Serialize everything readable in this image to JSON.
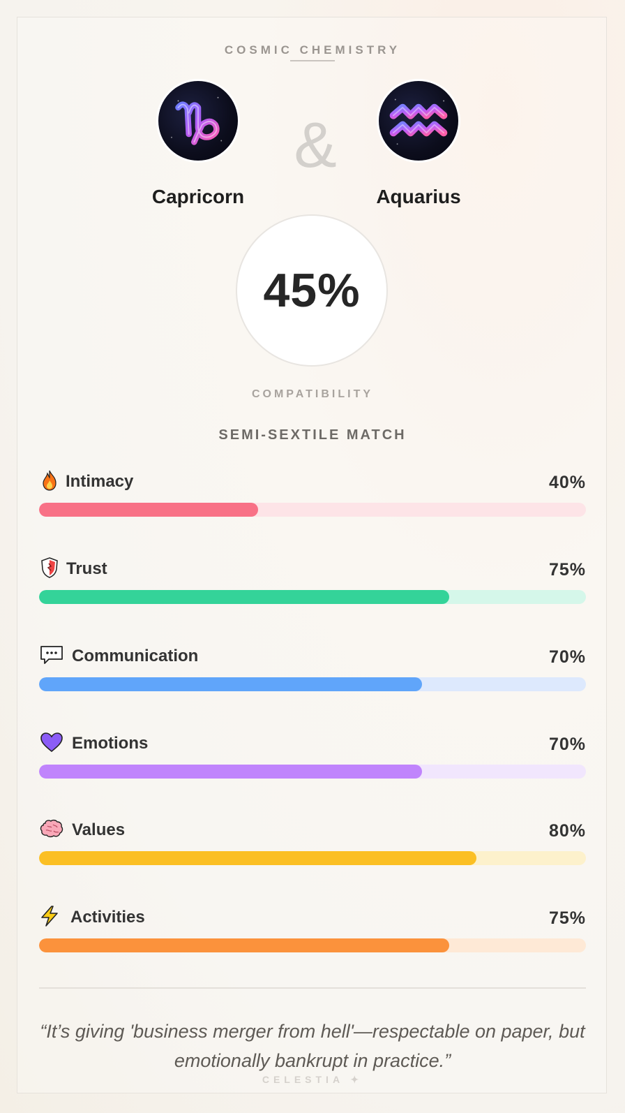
{
  "header": {
    "title": "COSMIC CHEMISTRY"
  },
  "signs": [
    {
      "name": "Capricorn",
      "glyph": "♑",
      "icon": "capricorn-icon"
    },
    {
      "name": "Aquarius",
      "glyph": "♒",
      "icon": "aquarius-icon"
    }
  ],
  "ampersand": "&",
  "score": {
    "value": "45%",
    "label": "COMPATIBILITY"
  },
  "match_type": "SEMI-SEXTILE MATCH",
  "metrics": [
    {
      "label": "Intimacy",
      "value": "40%",
      "percent": 40,
      "icon": "fire-icon",
      "color": "#f87186",
      "track": "#fde4e7"
    },
    {
      "label": "Trust",
      "value": "75%",
      "percent": 75,
      "icon": "shield-icon",
      "color": "#34d399",
      "track": "#d5f7ea"
    },
    {
      "label": "Communication",
      "value": "70%",
      "percent": 70,
      "icon": "speech-bubble-icon",
      "color": "#60a5fa",
      "track": "#dde9fd"
    },
    {
      "label": "Emotions",
      "value": "70%",
      "percent": 70,
      "icon": "heart-icon",
      "color": "#c084fc",
      "track": "#f1e6fd"
    },
    {
      "label": "Values",
      "value": "80%",
      "percent": 80,
      "icon": "brain-icon",
      "color": "#fbbf24",
      "track": "#fdf1cc"
    },
    {
      "label": "Activities",
      "value": "75%",
      "percent": 75,
      "icon": "lightning-icon",
      "color": "#fb923c",
      "track": "#fee9d6"
    }
  ],
  "quote": "“It’s giving 'business merger from hell'—respectable on paper, but emotionally bankrupt in practice.”",
  "brand": "CELESTIA ✦"
}
